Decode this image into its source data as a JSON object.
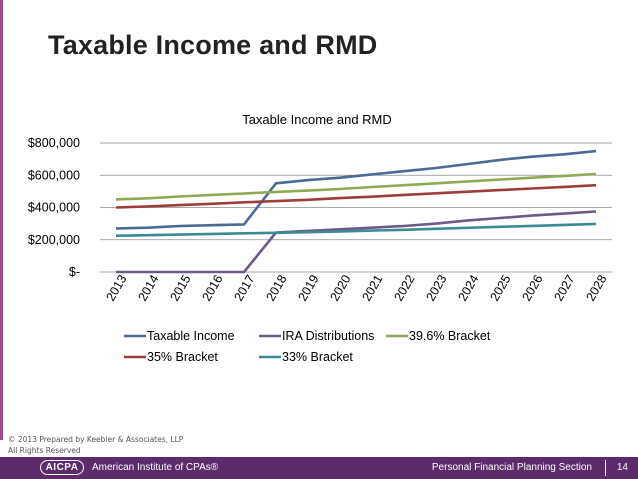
{
  "slide": {
    "title": "Taxable Income and RMD",
    "copyright_line1": "© 2013 Prepared by Keebler & Associates, LLP",
    "copyright_line2": "All Rights Reserved"
  },
  "footer": {
    "logo_text": "AICPA",
    "org": "American Institute of CPAs®",
    "section": "Personal Financial Planning Section",
    "page_number": "14"
  },
  "chart_data": {
    "type": "line",
    "title": "Taxable Income and RMD",
    "xlabel": "",
    "ylabel": "",
    "ylim": [
      0,
      800000
    ],
    "yticks": [
      0,
      200000,
      400000,
      600000,
      800000
    ],
    "ytick_labels": [
      "$-",
      "$200,000",
      "$400,000",
      "$600,000",
      "$800,000"
    ],
    "grid": true,
    "legend_position": "bottom",
    "categories": [
      "2013",
      "2014",
      "2015",
      "2016",
      "2017",
      "2018",
      "2019",
      "2020",
      "2021",
      "2022",
      "2023",
      "2024",
      "2025",
      "2026",
      "2027",
      "2028"
    ],
    "series": [
      {
        "name": "Taxable Income",
        "color": "#4a6b94",
        "values": [
          270000,
          275000,
          285000,
          290000,
          295000,
          550000,
          570000,
          585000,
          605000,
          625000,
          645000,
          670000,
          695000,
          715000,
          730000,
          750000
        ]
      },
      {
        "name": "IRA Distributions",
        "color": "#6e5a8a",
        "values": [
          0,
          0,
          0,
          0,
          0,
          245000,
          255000,
          265000,
          275000,
          285000,
          300000,
          320000,
          335000,
          350000,
          362000,
          375000
        ]
      },
      {
        "name": "39.6% Bracket",
        "color": "#8faa54",
        "values": [
          450000,
          457000,
          468000,
          478000,
          487000,
          497000,
          505000,
          515000,
          527000,
          538000,
          550000,
          562000,
          573000,
          585000,
          596000,
          608000
        ]
      },
      {
        "name": "35% Bracket",
        "color": "#9d3e3c",
        "values": [
          400000,
          407000,
          415000,
          423000,
          432000,
          440000,
          448000,
          458000,
          467000,
          478000,
          488000,
          498000,
          508000,
          518000,
          528000,
          538000
        ]
      },
      {
        "name": "33% Bracket",
        "color": "#3b8a96",
        "values": [
          225000,
          228000,
          232000,
          236000,
          240000,
          243000,
          247000,
          252000,
          257000,
          262000,
          268000,
          274000,
          280000,
          286000,
          292000,
          298000
        ]
      }
    ]
  }
}
